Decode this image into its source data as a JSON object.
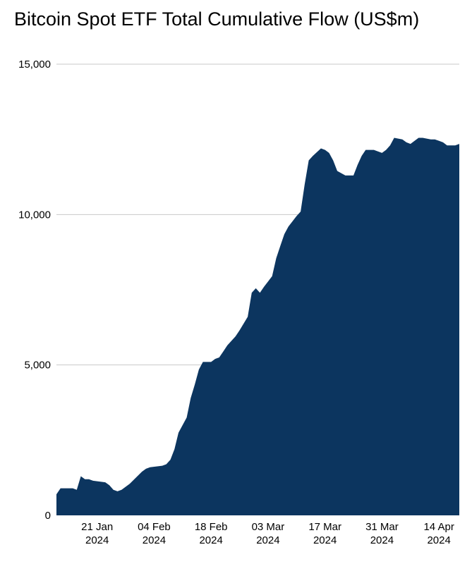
{
  "chart_data": {
    "type": "area",
    "title": "Bitcoin Spot ETF Total Cumulative Flow (US$m)",
    "xlabel": "",
    "ylabel": "",
    "ylim": [
      0,
      15000
    ],
    "grid": true,
    "legend": "none",
    "color": "#0c355f",
    "y_ticks": [
      0,
      5000,
      10000,
      15000
    ],
    "y_tick_labels": [
      "0",
      "5,000",
      "10,000",
      "15,000"
    ],
    "x_ticks": [
      {
        "date": "2024-01-21",
        "line1": "21 Jan",
        "line2": "2024"
      },
      {
        "date": "2024-02-04",
        "line1": "04 Feb",
        "line2": "2024"
      },
      {
        "date": "2024-02-18",
        "line1": "18 Feb",
        "line2": "2024"
      },
      {
        "date": "2024-03-03",
        "line1": "03 Mar",
        "line2": "2024"
      },
      {
        "date": "2024-03-17",
        "line1": "17 Mar",
        "line2": "2024"
      },
      {
        "date": "2024-03-31",
        "line1": "31 Mar",
        "line2": "2024"
      },
      {
        "date": "2024-04-14",
        "line1": "14 Apr",
        "line2": "2024"
      }
    ],
    "x_range": [
      "2024-01-11",
      "2024-04-19"
    ],
    "x": [
      "2024-01-11",
      "2024-01-12",
      "2024-01-15",
      "2024-01-16",
      "2024-01-17",
      "2024-01-18",
      "2024-01-19",
      "2024-01-20",
      "2024-01-23",
      "2024-01-24",
      "2024-01-25",
      "2024-01-26",
      "2024-01-27",
      "2024-01-29",
      "2024-02-01",
      "2024-02-02",
      "2024-02-03",
      "2024-02-06",
      "2024-02-07",
      "2024-02-08",
      "2024-02-09",
      "2024-02-10",
      "2024-02-12",
      "2024-02-13",
      "2024-02-14",
      "2024-02-15",
      "2024-02-16",
      "2024-02-18",
      "2024-02-19",
      "2024-02-20",
      "2024-02-21",
      "2024-02-22",
      "2024-02-24",
      "2024-02-25",
      "2024-02-27",
      "2024-02-28",
      "2024-02-29",
      "2024-03-01",
      "2024-03-02",
      "2024-03-04",
      "2024-03-05",
      "2024-03-06",
      "2024-03-07",
      "2024-03-08",
      "2024-03-10",
      "2024-03-11",
      "2024-03-12",
      "2024-03-13",
      "2024-03-14",
      "2024-03-16",
      "2024-03-17",
      "2024-03-18",
      "2024-03-19",
      "2024-03-20",
      "2024-03-22",
      "2024-03-23",
      "2024-03-24",
      "2024-03-25",
      "2024-03-26",
      "2024-03-27",
      "2024-03-29",
      "2024-03-30",
      "2024-03-31",
      "2024-04-01",
      "2024-04-02",
      "2024-04-03",
      "2024-04-05",
      "2024-04-06",
      "2024-04-07",
      "2024-04-08",
      "2024-04-09",
      "2024-04-10",
      "2024-04-12",
      "2024-04-13",
      "2024-04-14",
      "2024-04-15",
      "2024-04-16",
      "2024-04-17",
      "2024-04-18",
      "2024-04-19"
    ],
    "values": [
      700,
      900,
      900,
      850,
      1300,
      1200,
      1200,
      1150,
      1100,
      1000,
      850,
      800,
      850,
      1050,
      1450,
      1550,
      1600,
      1650,
      1700,
      1850,
      2200,
      2750,
      3250,
      3900,
      4350,
      4850,
      5100,
      5100,
      5200,
      5250,
      5450,
      5650,
      5950,
      6150,
      6600,
      7400,
      7550,
      7400,
      7600,
      7950,
      8550,
      8950,
      9350,
      9600,
      9950,
      10100,
      11000,
      11800,
      11950,
      12200,
      12150,
      12050,
      11800,
      11450,
      11300,
      11300,
      11300,
      11650,
      11950,
      12150,
      12150,
      12100,
      12050,
      12150,
      12300,
      12550,
      12500,
      12400,
      12350,
      12450,
      12550,
      12550,
      12500,
      12500,
      12450,
      12400,
      12300,
      12300,
      12300,
      12350
    ]
  }
}
